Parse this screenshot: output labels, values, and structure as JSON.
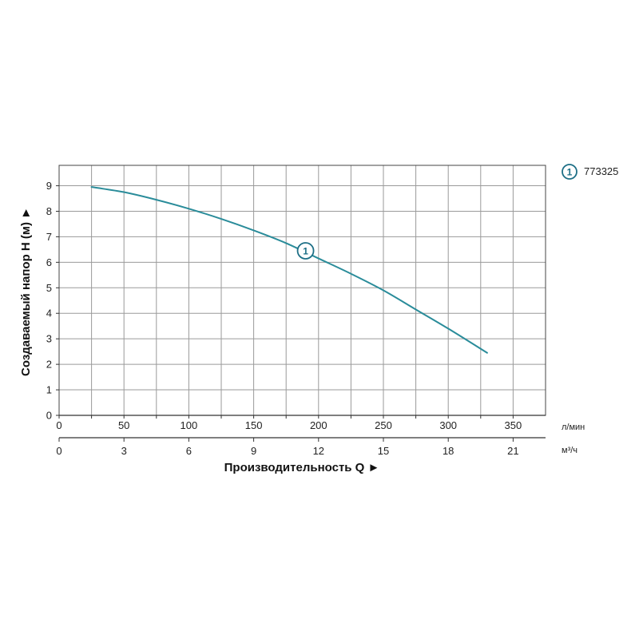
{
  "chart_data": {
    "type": "line",
    "x_unit": "л/мин",
    "x2_unit": "м³/ч",
    "xlabel": "Производительность Q ►",
    "ylabel": "Создаваемый напор H (м) ►",
    "x_ticks": [
      0,
      50,
      100,
      150,
      200,
      250,
      300,
      350
    ],
    "x2_ticks": [
      0,
      3,
      6,
      9,
      12,
      15,
      18,
      21
    ],
    "y_ticks": [
      0,
      1,
      2,
      3,
      4,
      5,
      6,
      7,
      8,
      9
    ],
    "xlim": [
      0,
      375
    ],
    "ylim": [
      0,
      9.8
    ],
    "grid": true,
    "series": [
      {
        "marker_label": "1",
        "name": "773325",
        "color": "#2a8c9a",
        "x": [
          25,
          50,
          75,
          100,
          125,
          150,
          175,
          200,
          225,
          250,
          275,
          300,
          330
        ],
        "y": [
          8.95,
          8.75,
          8.45,
          8.1,
          7.7,
          7.25,
          6.75,
          6.15,
          5.55,
          4.9,
          4.15,
          3.4,
          2.45
        ]
      }
    ],
    "annotation": {
      "label": "1",
      "x": 190,
      "y": 6.45
    },
    "legend": {
      "position": "top-right",
      "entries": [
        {
          "marker": "1",
          "label": "773325"
        }
      ]
    }
  }
}
